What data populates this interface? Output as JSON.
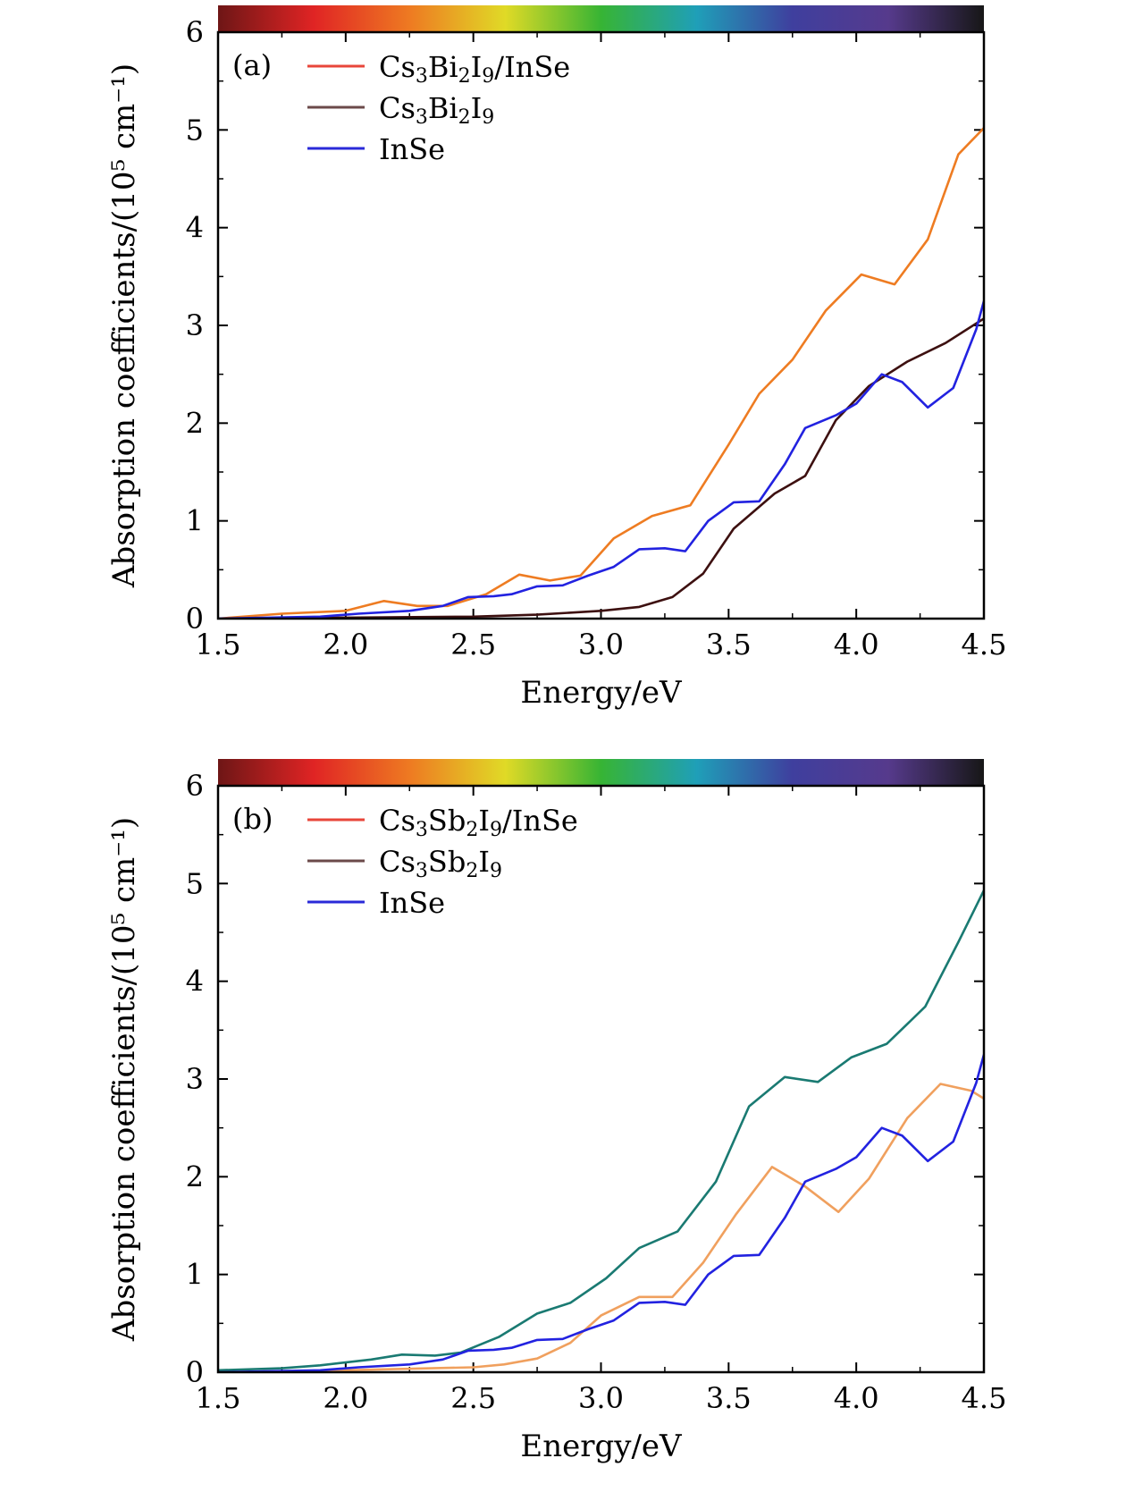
{
  "spectrum_colors": [
    "#6e1616",
    "#e02424",
    "#ee7a22",
    "#e0da26",
    "#37b434",
    "#1f9fb8",
    "#3f3f9e",
    "#563a8c",
    "#171717"
  ],
  "chart_data": [
    {
      "type": "line",
      "panel_label": "(a)",
      "xlabel": "Energy/eV",
      "ylabel": "Absorption coefficients/(10⁵ cm⁻¹)",
      "xlim": [
        1.5,
        4.5
      ],
      "ylim": [
        0,
        6
      ],
      "xticks": [
        "1.5",
        "2.0",
        "2.5",
        "3.0",
        "3.5",
        "4.0",
        "4.5"
      ],
      "yticks": [
        "0",
        "1",
        "2",
        "3",
        "4",
        "5",
        "6"
      ],
      "legend_placement": "top-left",
      "legend": [
        {
          "base": "Cs",
          "sub1": "3",
          "mid1": "Bi",
          "sub2": "2",
          "mid2": "I",
          "sub3": "9",
          "tail": "/InSe",
          "swatch": "#e8463a"
        },
        {
          "base": "Cs",
          "sub1": "3",
          "mid1": "Bi",
          "sub2": "2",
          "mid2": "I",
          "sub3": "9",
          "tail": "",
          "swatch": "#6b4a4a"
        },
        {
          "base": "InSe",
          "sub1": "",
          "mid1": "",
          "sub2": "",
          "mid2": "",
          "sub3": "",
          "tail": "",
          "swatch": "#2a2ad8"
        }
      ],
      "series": [
        {
          "color": "#ee7c22",
          "x": [
            1.5,
            1.75,
            2.0,
            2.15,
            2.28,
            2.4,
            2.55,
            2.68,
            2.8,
            2.92,
            3.05,
            3.2,
            3.35,
            3.5,
            3.62,
            3.75,
            3.88,
            4.02,
            4.15,
            4.28,
            4.4,
            4.5
          ],
          "y": [
            0.0,
            0.05,
            0.08,
            0.18,
            0.13,
            0.13,
            0.25,
            0.45,
            0.39,
            0.44,
            0.82,
            1.05,
            1.16,
            1.78,
            2.3,
            2.65,
            3.15,
            3.52,
            3.42,
            3.88,
            4.75,
            5.02
          ]
        },
        {
          "color": "#3d1010",
          "x": [
            1.5,
            2.0,
            2.5,
            2.75,
            3.0,
            3.15,
            3.28,
            3.4,
            3.52,
            3.68,
            3.8,
            3.92,
            4.05,
            4.2,
            4.35,
            4.5
          ],
          "y": [
            0.0,
            0.01,
            0.02,
            0.04,
            0.08,
            0.12,
            0.22,
            0.46,
            0.92,
            1.28,
            1.46,
            2.03,
            2.38,
            2.63,
            2.82,
            3.07
          ]
        },
        {
          "color": "#2222e0",
          "x": [
            1.5,
            1.9,
            2.05,
            2.25,
            2.38,
            2.48,
            2.58,
            2.65,
            2.75,
            2.85,
            2.95,
            3.05,
            3.15,
            3.25,
            3.33,
            3.42,
            3.52,
            3.62,
            3.72,
            3.8,
            3.92,
            4.0,
            4.1,
            4.18,
            4.28,
            4.38,
            4.47,
            4.5
          ],
          "y": [
            0.0,
            0.02,
            0.05,
            0.08,
            0.13,
            0.22,
            0.23,
            0.25,
            0.33,
            0.34,
            0.44,
            0.53,
            0.71,
            0.72,
            0.69,
            1.0,
            1.19,
            1.2,
            1.58,
            1.95,
            2.08,
            2.2,
            2.5,
            2.42,
            2.16,
            2.36,
            2.96,
            3.25
          ]
        }
      ]
    },
    {
      "type": "line",
      "panel_label": "(b)",
      "xlabel": "Energy/eV",
      "ylabel": "Absorption coefficients/(10⁵ cm⁻¹)",
      "xlim": [
        1.5,
        4.5
      ],
      "ylim": [
        0,
        6
      ],
      "xticks": [
        "1.5",
        "2.0",
        "2.5",
        "3.0",
        "3.5",
        "4.0",
        "4.5"
      ],
      "yticks": [
        "0",
        "1",
        "2",
        "3",
        "4",
        "5",
        "6"
      ],
      "legend_placement": "top-left",
      "legend": [
        {
          "base": "Cs",
          "sub1": "3",
          "mid1": "Sb",
          "sub2": "2",
          "mid2": "I",
          "sub3": "9",
          "tail": "/InSe",
          "swatch": "#e8463a"
        },
        {
          "base": "Cs",
          "sub1": "3",
          "mid1": "Sb",
          "sub2": "2",
          "mid2": "I",
          "sub3": "9",
          "tail": "",
          "swatch": "#6b4a4a"
        },
        {
          "base": "InSe",
          "sub1": "",
          "mid1": "",
          "sub2": "",
          "mid2": "",
          "sub3": "",
          "tail": "",
          "swatch": "#2a2ad8"
        }
      ],
      "series": [
        {
          "color": "#f0a05e",
          "x": [
            1.5,
            2.0,
            2.5,
            2.62,
            2.75,
            2.88,
            3.0,
            3.15,
            3.28,
            3.4,
            3.53,
            3.67,
            3.8,
            3.93,
            4.05,
            4.2,
            4.33,
            4.45,
            4.5
          ],
          "y": [
            0.0,
            0.02,
            0.05,
            0.08,
            0.14,
            0.3,
            0.58,
            0.77,
            0.77,
            1.12,
            1.62,
            2.1,
            1.9,
            1.64,
            1.98,
            2.6,
            2.95,
            2.88,
            2.8
          ]
        },
        {
          "color": "#1a7a72",
          "x": [
            1.5,
            1.75,
            1.9,
            2.1,
            2.22,
            2.35,
            2.45,
            2.6,
            2.75,
            2.88,
            3.02,
            3.15,
            3.3,
            3.45,
            3.58,
            3.72,
            3.85,
            3.98,
            4.12,
            4.27,
            4.4,
            4.5
          ],
          "y": [
            0.02,
            0.04,
            0.07,
            0.13,
            0.18,
            0.17,
            0.2,
            0.36,
            0.6,
            0.71,
            0.96,
            1.27,
            1.44,
            1.95,
            2.72,
            3.02,
            2.97,
            3.22,
            3.36,
            3.74,
            4.4,
            4.93
          ]
        },
        {
          "color": "#2222e0",
          "x": [
            1.5,
            1.9,
            2.05,
            2.25,
            2.38,
            2.48,
            2.58,
            2.65,
            2.75,
            2.85,
            2.95,
            3.05,
            3.15,
            3.25,
            3.33,
            3.42,
            3.52,
            3.62,
            3.72,
            3.8,
            3.92,
            4.0,
            4.1,
            4.18,
            4.28,
            4.38,
            4.47,
            4.5
          ],
          "y": [
            0.0,
            0.02,
            0.05,
            0.08,
            0.13,
            0.22,
            0.23,
            0.25,
            0.33,
            0.34,
            0.44,
            0.53,
            0.71,
            0.72,
            0.69,
            1.0,
            1.19,
            1.2,
            1.58,
            1.95,
            2.08,
            2.2,
            2.5,
            2.42,
            2.16,
            2.36,
            2.96,
            3.25
          ]
        }
      ]
    }
  ]
}
